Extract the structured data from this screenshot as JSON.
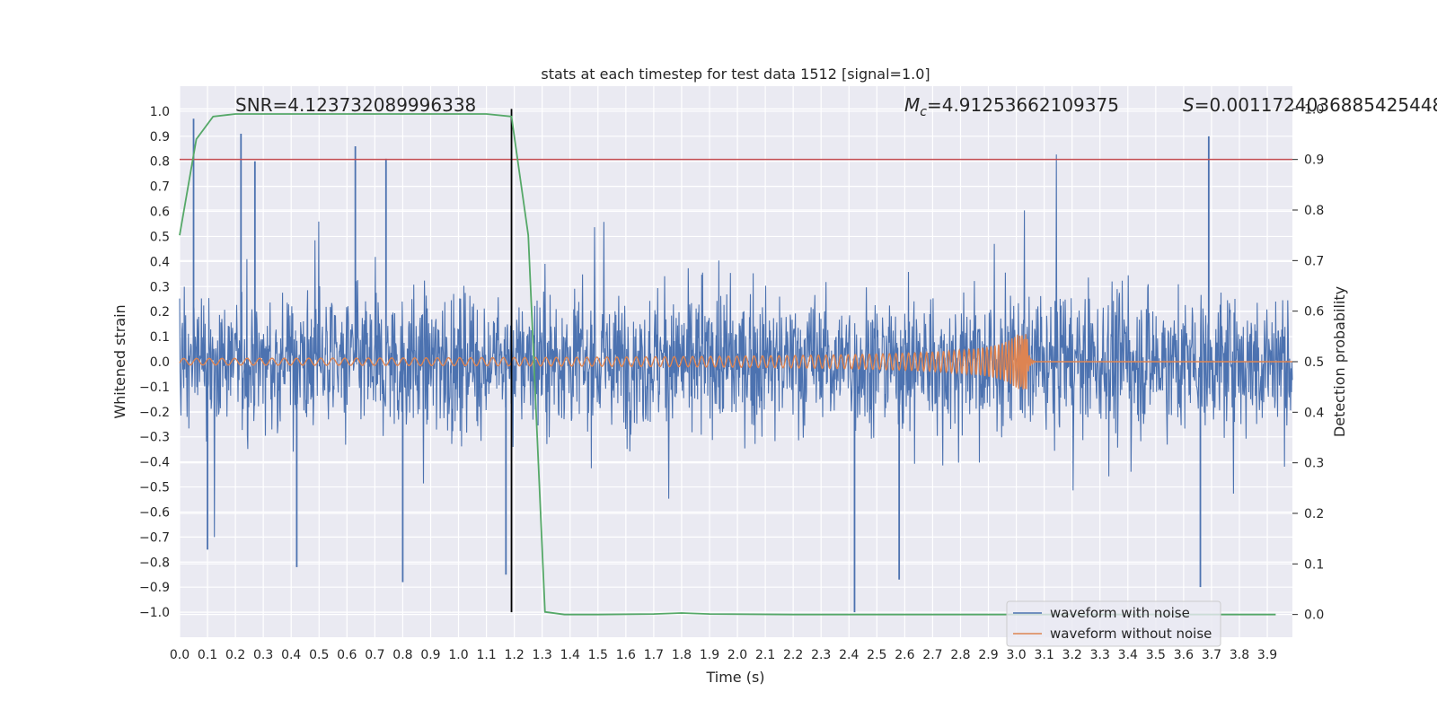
{
  "chart_data": {
    "type": "line",
    "title": "stats at each timestep for test data 1512 [signal=1.0]",
    "xlabel": "Time (s)",
    "ylabel": "Whitened strain",
    "y2label": "Detection probability",
    "xlim": [
      0.0,
      3.99
    ],
    "ylim": [
      -1.1,
      1.1
    ],
    "y2lim": [
      -0.045,
      1.045
    ],
    "x_ticks": [
      "0.0",
      "0.1",
      "0.2",
      "0.3",
      "0.4",
      "0.5",
      "0.6",
      "0.7",
      "0.8",
      "0.9",
      "1.0",
      "1.1",
      "1.2",
      "1.3",
      "1.4",
      "1.5",
      "1.6",
      "1.7",
      "1.8",
      "1.9",
      "2.0",
      "2.1",
      "2.2",
      "2.3",
      "2.4",
      "2.5",
      "2.6",
      "2.7",
      "2.8",
      "2.9",
      "3.0",
      "3.1",
      "3.2",
      "3.3",
      "3.4",
      "3.5",
      "3.6",
      "3.7",
      "3.8",
      "3.9"
    ],
    "y_ticks": [
      "1.0",
      "0.9",
      "0.8",
      "0.7",
      "0.6",
      "0.5",
      "0.4",
      "0.3",
      "0.2",
      "0.1",
      "0.0",
      "−0.1",
      "−0.2",
      "−0.3",
      "−0.4",
      "−0.5",
      "−0.6",
      "−0.7",
      "−0.8",
      "−0.9",
      "−1.0"
    ],
    "y2_ticks": [
      "1.0",
      "0.9",
      "0.8",
      "0.7",
      "0.6",
      "0.5",
      "0.4",
      "0.3",
      "0.2",
      "0.1",
      "0.0"
    ],
    "annotations": {
      "snr": "SNR=4.123732089996338",
      "mc_symbol": "M",
      "mc_sub": "c",
      "mc_value": "=4.91253662109375",
      "s_symbol": "S",
      "s_value": "=0.0011724036885425448"
    },
    "threshold_prob": 0.9,
    "event_time": 1.19,
    "legend": {
      "position": "lower right",
      "entries": [
        "waveform with noise",
        "waveform without noise"
      ]
    },
    "colors": {
      "noise": "#4c72b0",
      "clean": "#dd8452",
      "prob": "#55a868",
      "threshold": "#c44e52",
      "event": "#000000",
      "plot_bg": "#eaeaf2",
      "grid": "#ffffff"
    },
    "noise_peaks": [
      {
        "t": 0.05,
        "v": 0.97
      },
      {
        "t": 0.22,
        "v": 0.91
      },
      {
        "t": 0.27,
        "v": 0.8
      },
      {
        "t": 0.63,
        "v": 0.86
      },
      {
        "t": 0.74,
        "v": 0.81
      },
      {
        "t": 3.69,
        "v": 0.9
      },
      {
        "t": 0.1,
        "v": -0.75
      },
      {
        "t": 0.42,
        "v": -0.82
      },
      {
        "t": 0.8,
        "v": -0.88
      },
      {
        "t": 1.17,
        "v": -0.85
      },
      {
        "t": 2.42,
        "v": -1.0
      },
      {
        "t": 2.58,
        "v": -0.87
      },
      {
        "t": 3.66,
        "v": -0.9
      }
    ],
    "prob_series": {
      "name": "detection probability",
      "t": [
        0.0,
        0.06,
        0.12,
        0.2,
        0.35,
        0.6,
        0.9,
        1.1,
        1.19,
        1.25,
        1.31,
        1.38,
        1.5,
        1.7,
        1.8,
        1.9,
        2.2,
        2.6,
        3.0,
        3.4,
        3.93
      ],
      "p": [
        0.75,
        0.94,
        0.985,
        0.99,
        0.99,
        0.99,
        0.99,
        0.99,
        0.985,
        0.75,
        0.005,
        0.0,
        0.0,
        0.001,
        0.003,
        0.001,
        0.0,
        0.0,
        0.0,
        0.0,
        0.0
      ]
    }
  }
}
